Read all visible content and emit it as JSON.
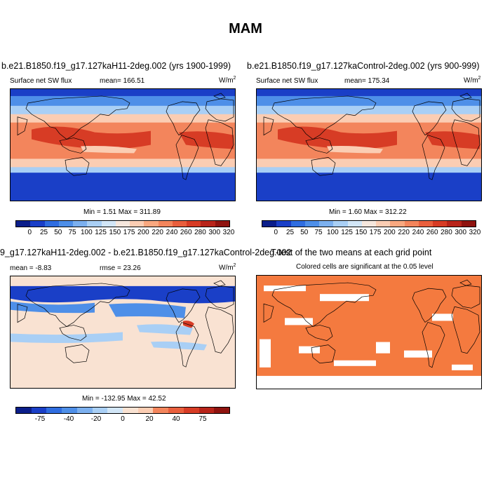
{
  "figure": {
    "title": "MAM"
  },
  "panels": {
    "p1": {
      "title": "b.e21.B1850.f19_g17.127kaH11-2deg.002 (yrs 1900-1999)",
      "left_label": "Surface net SW flux",
      "center_label": "mean= 166.51",
      "units": "W/m",
      "units_sup": "2",
      "minmax": "Min =   1.51 Max = 311.89"
    },
    "p2": {
      "title": "b.e21.B1850.f19_g17.127kaControl-2deg.002 (yrs 900-999)",
      "left_label": "Surface net SW flux",
      "center_label": "mean= 175.34",
      "units": "W/m",
      "units_sup": "2",
      "minmax": "Min =   1.60 Max = 312.22"
    },
    "p3": {
      "title": "9_g17.127kaH11-2deg.002 - b.e21.B1850.f19_g17.127kaControl-2deg.002",
      "left_label": "mean =  -8.83",
      "center_label": "rmse =  23.26",
      "units": "W/m",
      "units_sup": "2",
      "minmax": "Min = -132.95 Max =  42.52"
    },
    "p4": {
      "title": "T-test of the two means at each grid point",
      "subtitle": "Colored cells are significant at the 0.05 level"
    }
  },
  "colorbars": {
    "abs": {
      "colors": [
        "#0b1e8a",
        "#1a3fc7",
        "#2f6de0",
        "#4e8fe8",
        "#7cb0ef",
        "#a9cff5",
        "#d2e6f7",
        "#f6e7dd",
        "#fbcdb3",
        "#f9a880",
        "#f3855c",
        "#e95f3d",
        "#d73c25",
        "#b8241a",
        "#8f130f"
      ],
      "labels": [
        "0",
        "25",
        "50",
        "75",
        "100",
        "125",
        "150",
        "175",
        "200",
        "220",
        "240",
        "260",
        "280",
        "300",
        "320"
      ]
    },
    "diff": {
      "colors": [
        "#0b1e8a",
        "#1a3fc7",
        "#2f6de0",
        "#4e8fe8",
        "#7cb0ef",
        "#a9cff5",
        "#d2e6f7",
        "#f9e2d2",
        "#fbcdb3",
        "#f3855c",
        "#e95f3d",
        "#d73c25",
        "#b8241a",
        "#8f130f"
      ],
      "labels": [
        "-75",
        "-40",
        "-20",
        "0",
        "20",
        "40",
        "75"
      ]
    }
  },
  "map_colors": {
    "deep_blue": "#1a3fc7",
    "mid_blue": "#4e8fe8",
    "light_blue": "#a9cff5",
    "peach": "#fbcdb3",
    "orange": "#f3855c",
    "red": "#d73c25",
    "sig_orange": "#f47a3f"
  }
}
